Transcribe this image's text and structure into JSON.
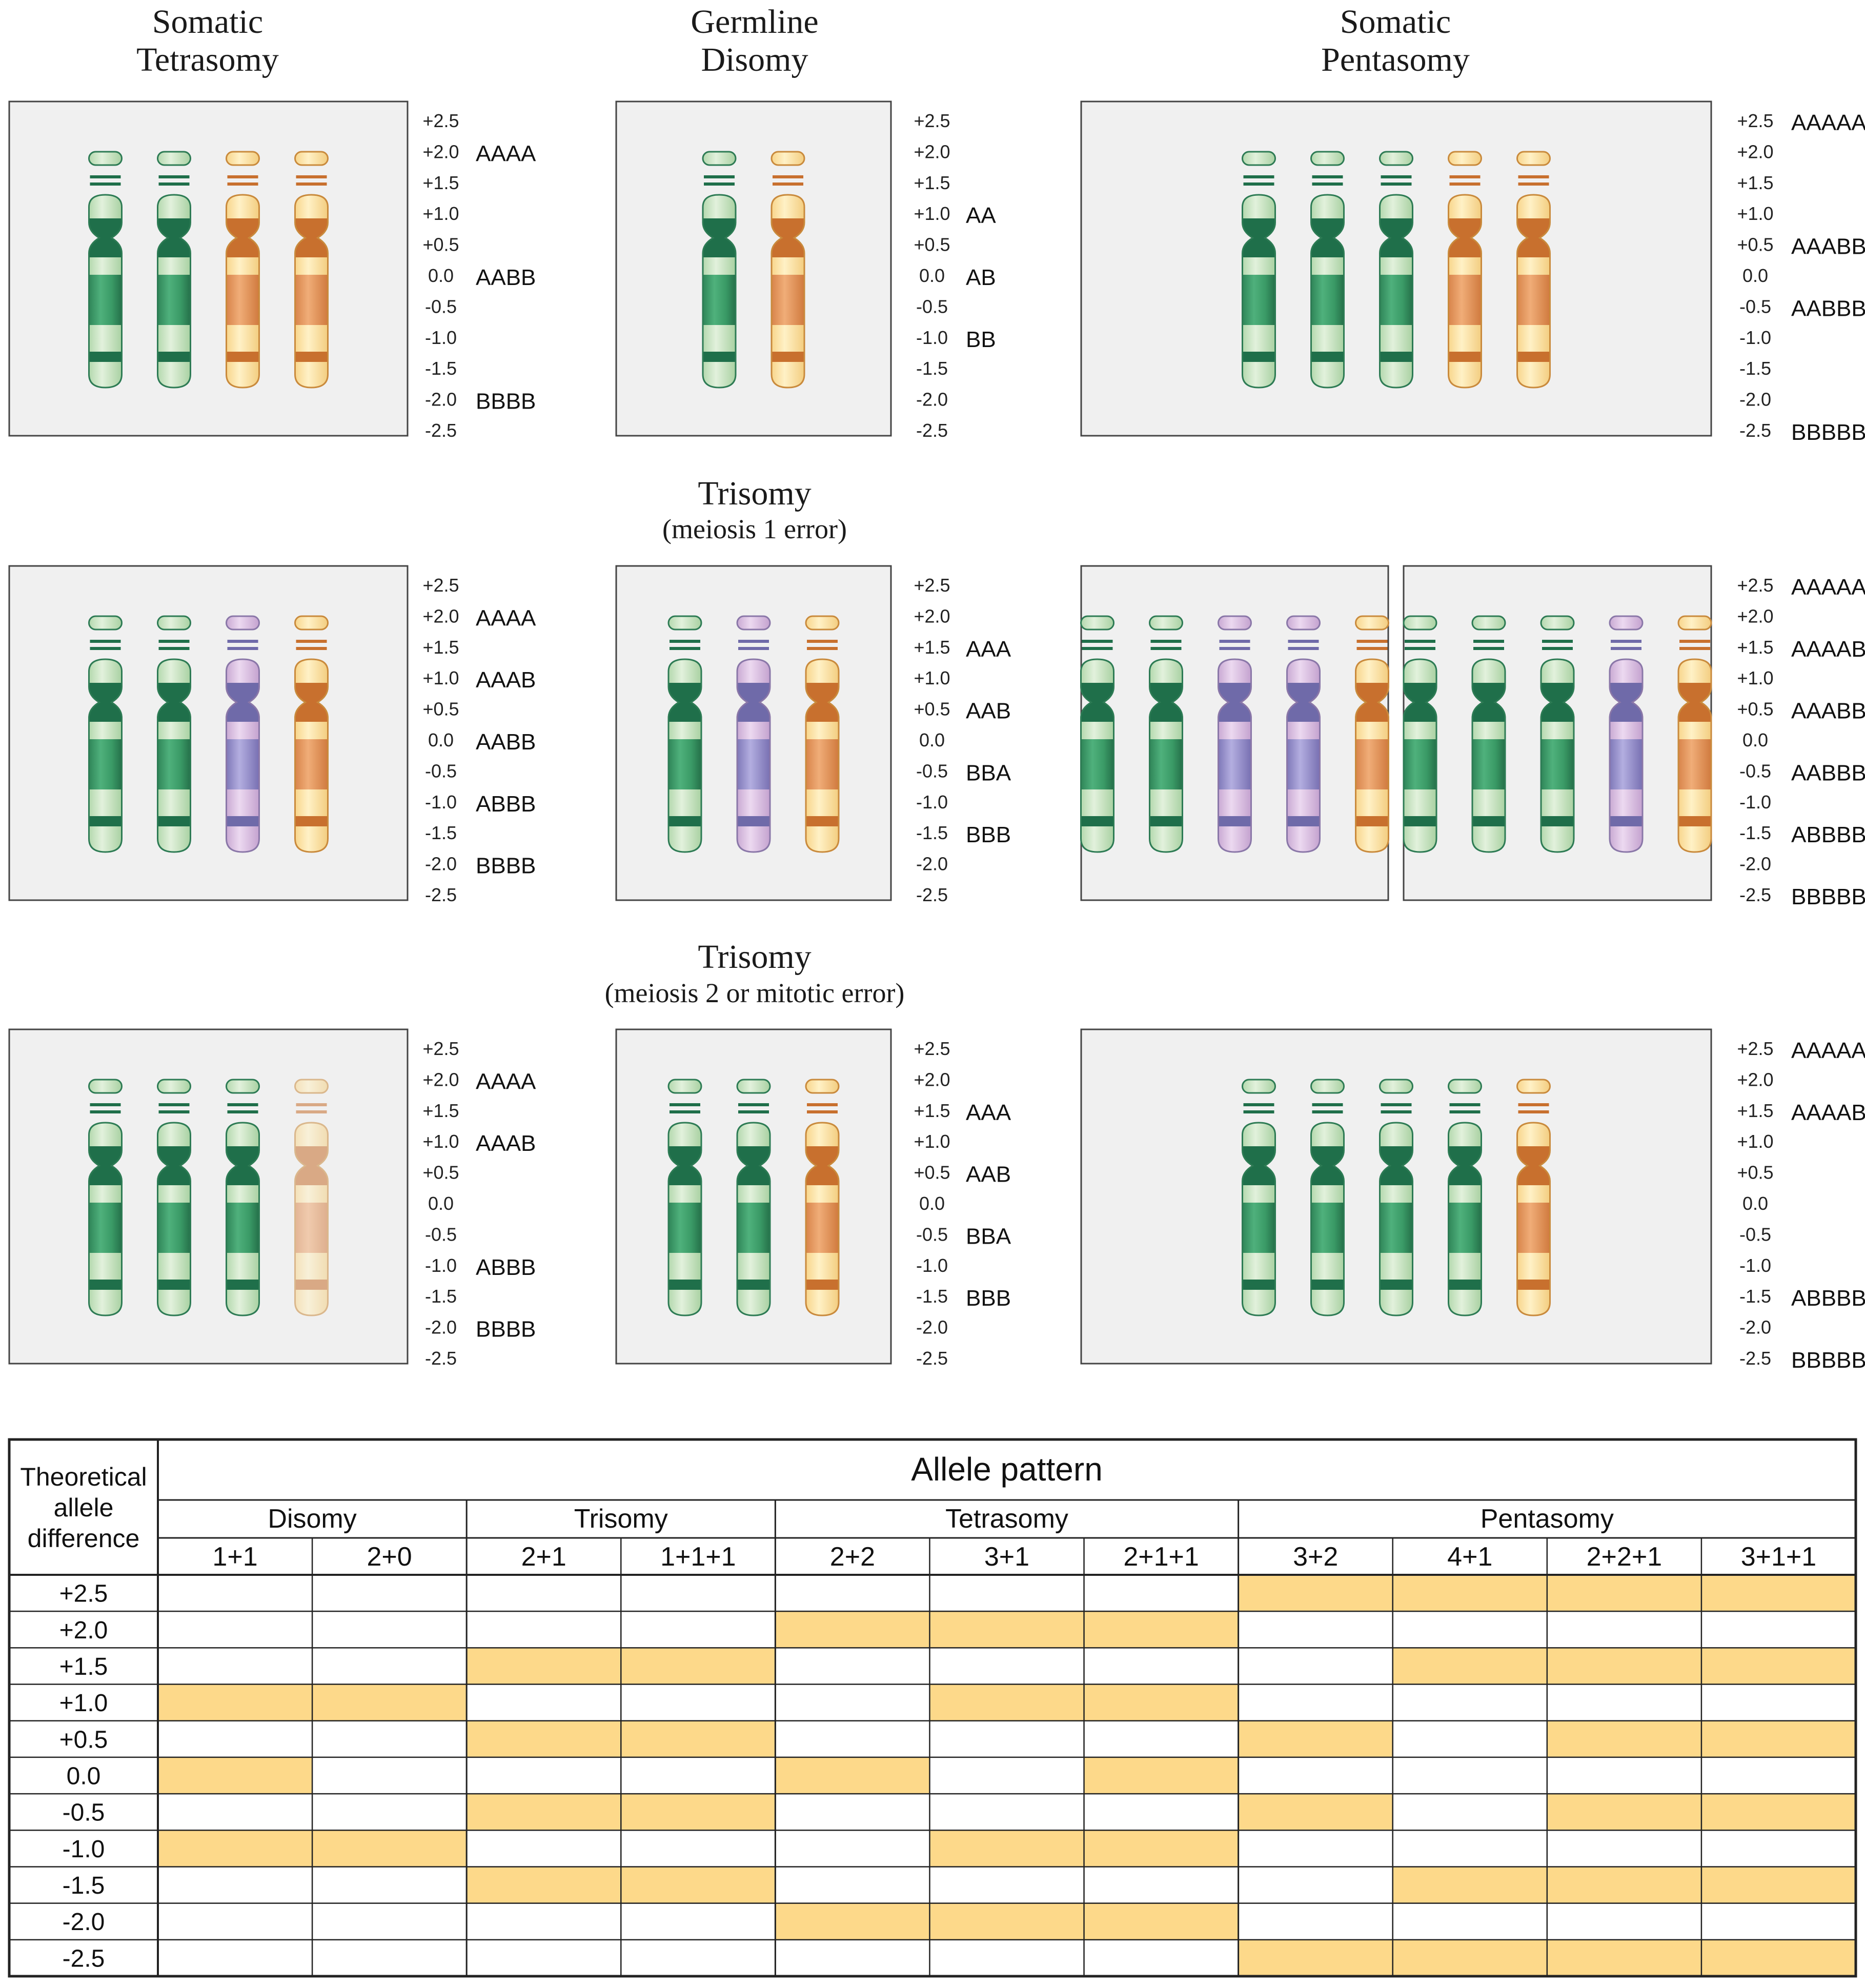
{
  "headers": {
    "somatic_tetrasomy": [
      "Somatic",
      "Tetrasomy"
    ],
    "germline_disomy": [
      "Germline",
      "Disomy"
    ],
    "somatic_pentasomy": [
      "Somatic",
      "Pentasomy"
    ],
    "trisomy_m1": {
      "title": "Trisomy",
      "subtitle": "(meiosis 1 error)"
    },
    "trisomy_m2": {
      "title": "Trisomy",
      "subtitle": "(meiosis 2 or mitotic error)"
    }
  },
  "ticks": [
    "+2.5",
    "+2.0",
    "+1.5",
    "+1.0",
    "+0.5",
    "0.0",
    "-0.5",
    "-1.0",
    "-1.5",
    "-2.0",
    "-2.5"
  ],
  "colors": {
    "green": "#3e9a68",
    "green_light": "#cce5c6",
    "green_dark": "#1f6f4a",
    "orange": "#e39a62",
    "orange_light": "#fde3a0",
    "orange_dark": "#c8702e",
    "purple": "#9a93cc",
    "purple_light": "#dcc3e3",
    "purple_dark": "#6f6aa9",
    "highlight": "#fdd98a"
  },
  "panel_groups": [
    {
      "name": "somatic-tetrasomy-row1",
      "panels": [
        {
          "chromosomes": [
            "green",
            "green",
            "orange",
            "orange"
          ]
        }
      ],
      "genotypes": [
        {
          "tick": "+2.0",
          "label": "AAAA"
        },
        {
          "tick": "0.0",
          "label": "AABB"
        },
        {
          "tick": "-2.0",
          "label": "BBBB"
        }
      ]
    },
    {
      "name": "germline-disomy-row1",
      "panels": [
        {
          "chromosomes": [
            "green",
            "orange"
          ]
        }
      ],
      "genotypes": [
        {
          "tick": "+1.0",
          "label": "AA"
        },
        {
          "tick": "0.0",
          "label": "AB"
        },
        {
          "tick": "-1.0",
          "label": "BB"
        }
      ]
    },
    {
      "name": "somatic-pentasomy-row1",
      "panels": [
        {
          "chromosomes": [
            "green",
            "green",
            "green",
            "orange",
            "orange"
          ]
        }
      ],
      "genotypes": [
        {
          "tick": "+2.5",
          "label": "AAAAA"
        },
        {
          "tick": "+0.5",
          "label": "AAABB"
        },
        {
          "tick": "-0.5",
          "label": "AABBB"
        },
        {
          "tick": "-2.5",
          "label": "BBBBB"
        }
      ]
    },
    {
      "name": "tetrasomy-row2",
      "panels": [
        {
          "chromosomes": [
            "green",
            "green",
            "purple",
            "orange"
          ]
        }
      ],
      "genotypes": [
        {
          "tick": "+2.0",
          "label": "AAAA"
        },
        {
          "tick": "+1.0",
          "label": "AAAB"
        },
        {
          "tick": "0.0",
          "label": "AABB"
        },
        {
          "tick": "-1.0",
          "label": "ABBB"
        },
        {
          "tick": "-2.0",
          "label": "BBBB"
        }
      ]
    },
    {
      "name": "trisomy-m1-row2",
      "panels": [
        {
          "chromosomes": [
            "green",
            "purple",
            "orange"
          ]
        }
      ],
      "genotypes": [
        {
          "tick": "+1.5",
          "label": "AAA"
        },
        {
          "tick": "+0.5",
          "label": "AAB"
        },
        {
          "tick": "-0.5",
          "label": "BBA"
        },
        {
          "tick": "-1.5",
          "label": "BBB"
        }
      ]
    },
    {
      "name": "pentasomy-row2",
      "panels": [
        {
          "chromosomes": [
            "green",
            "green",
            "purple",
            "purple",
            "orange"
          ]
        },
        {
          "chromosomes": [
            "green",
            "green",
            "green",
            "purple",
            "orange"
          ]
        }
      ],
      "genotypes": [
        {
          "tick": "+2.5",
          "label": "AAAAA"
        },
        {
          "tick": "+1.5",
          "label": "AAAAB"
        },
        {
          "tick": "+0.5",
          "label": "AAABB"
        },
        {
          "tick": "-0.5",
          "label": "AABBB"
        },
        {
          "tick": "-1.5",
          "label": "ABBBB"
        },
        {
          "tick": "-2.5",
          "label": "BBBBB"
        }
      ]
    },
    {
      "name": "tetrasomy-row3",
      "panels": [
        {
          "chromosomes": [
            "green",
            "green",
            "green",
            "orange-faded"
          ]
        }
      ],
      "genotypes": [
        {
          "tick": "+2.0",
          "label": "AAAA"
        },
        {
          "tick": "+1.0",
          "label": "AAAB"
        },
        {
          "tick": "-1.0",
          "label": "ABBB"
        },
        {
          "tick": "-2.0",
          "label": "BBBB"
        }
      ]
    },
    {
      "name": "trisomy-m2-row3",
      "panels": [
        {
          "chromosomes": [
            "green",
            "green",
            "orange"
          ]
        }
      ],
      "genotypes": [
        {
          "tick": "+1.5",
          "label": "AAA"
        },
        {
          "tick": "+0.5",
          "label": "AAB"
        },
        {
          "tick": "-0.5",
          "label": "BBA"
        },
        {
          "tick": "-1.5",
          "label": "BBB"
        }
      ]
    },
    {
      "name": "pentasomy-row3",
      "panels": [
        {
          "chromosomes": [
            "green",
            "green",
            "green",
            "green",
            "orange"
          ]
        }
      ],
      "genotypes": [
        {
          "tick": "+2.5",
          "label": "AAAAA"
        },
        {
          "tick": "+1.5",
          "label": "AAAAB"
        },
        {
          "tick": "-1.5",
          "label": "ABBBB"
        },
        {
          "tick": "-2.5",
          "label": "BBBBB"
        }
      ]
    }
  ],
  "table": {
    "row_header": [
      "Theoretical",
      "allele",
      "difference"
    ],
    "title": "Allele pattern",
    "groups": [
      {
        "name": "Disomy",
        "span": 2
      },
      {
        "name": "Trisomy",
        "span": 2
      },
      {
        "name": "Tetrasomy",
        "span": 3
      },
      {
        "name": "Pentasomy",
        "span": 4
      }
    ],
    "columns": [
      "1+1",
      "2+0",
      "2+1",
      "1+1+1",
      "2+2",
      "3+1",
      "2+1+1",
      "3+2",
      "4+1",
      "2+2+1",
      "3+1+1"
    ],
    "rows": [
      {
        "label": "+2.5",
        "cells": [
          0,
          0,
          0,
          0,
          0,
          0,
          0,
          1,
          1,
          1,
          1
        ]
      },
      {
        "label": "+2.0",
        "cells": [
          0,
          0,
          0,
          0,
          1,
          1,
          1,
          0,
          0,
          0,
          0
        ]
      },
      {
        "label": "+1.5",
        "cells": [
          0,
          0,
          1,
          1,
          0,
          0,
          0,
          0,
          1,
          1,
          1
        ]
      },
      {
        "label": "+1.0",
        "cells": [
          1,
          1,
          0,
          0,
          0,
          1,
          1,
          0,
          0,
          0,
          0
        ]
      },
      {
        "label": "+0.5",
        "cells": [
          0,
          0,
          1,
          1,
          0,
          0,
          0,
          1,
          0,
          1,
          1
        ]
      },
      {
        "label": "0.0",
        "cells": [
          1,
          0,
          0,
          0,
          1,
          0,
          1,
          0,
          0,
          0,
          0
        ]
      },
      {
        "label": "-0.5",
        "cells": [
          0,
          0,
          1,
          1,
          0,
          0,
          0,
          1,
          0,
          1,
          1
        ]
      },
      {
        "label": "-1.0",
        "cells": [
          1,
          1,
          0,
          0,
          0,
          1,
          1,
          0,
          0,
          0,
          0
        ]
      },
      {
        "label": "-1.5",
        "cells": [
          0,
          0,
          1,
          1,
          0,
          0,
          0,
          0,
          1,
          1,
          1
        ]
      },
      {
        "label": "-2.0",
        "cells": [
          0,
          0,
          0,
          0,
          1,
          1,
          1,
          0,
          0,
          0,
          0
        ]
      },
      {
        "label": "-2.5",
        "cells": [
          0,
          0,
          0,
          0,
          0,
          0,
          0,
          1,
          1,
          1,
          1
        ]
      }
    ]
  }
}
